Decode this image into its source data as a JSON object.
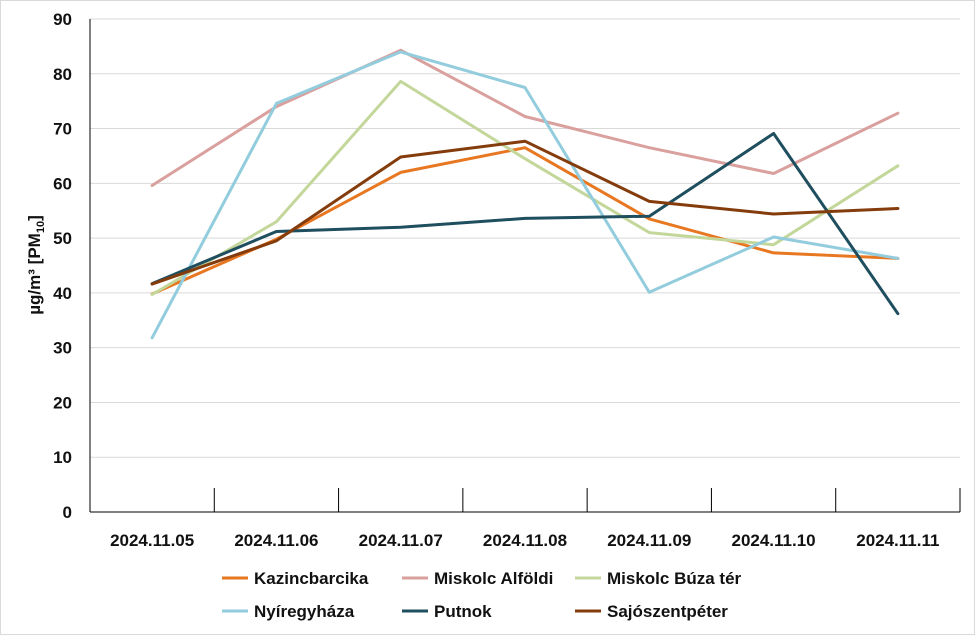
{
  "chart_data": {
    "type": "line",
    "title": "",
    "xlabel": "",
    "ylabel": {
      "main": "µg/m³  [PM",
      "sub": "10",
      "close": "]"
    },
    "categories": [
      "2024.11.05",
      "2024.11.06",
      "2024.11.07",
      "2024.11.08",
      "2024.11.09",
      "2024.11.10",
      "2024.11.11"
    ],
    "ylim": [
      0,
      90
    ],
    "yticks": [
      0,
      10,
      20,
      30,
      40,
      50,
      60,
      70,
      80,
      90
    ],
    "grid": true,
    "legend_position": "bottom",
    "series": [
      {
        "name": "Kazincbarcika",
        "color": "#E87722",
        "values": [
          39.8,
          49.8,
          62.0,
          66.5,
          53.5,
          47.3,
          46.3
        ]
      },
      {
        "name": "Miskolc Alföldi",
        "color": "#D9A09E",
        "values": [
          59.6,
          74.0,
          84.3,
          72.2,
          66.5,
          61.8,
          72.8
        ]
      },
      {
        "name": "Miskolc Búza tér",
        "color": "#C4D79B",
        "values": [
          39.7,
          53.0,
          78.6,
          64.5,
          51.0,
          48.8,
          63.2
        ]
      },
      {
        "name": "Nyíregyháza",
        "color": "#93CDDD",
        "values": [
          31.8,
          74.6,
          84.0,
          77.5,
          40.1,
          50.2,
          46.3
        ]
      },
      {
        "name": "Putnok",
        "color": "#1F4E5F",
        "values": [
          41.7,
          51.2,
          52.0,
          53.6,
          54.0,
          69.1,
          36.2
        ]
      },
      {
        "name": "Sajószentpéter",
        "color": "#843C0C",
        "values": [
          41.6,
          49.5,
          64.8,
          67.7,
          56.7,
          54.4,
          55.4
        ]
      }
    ]
  }
}
